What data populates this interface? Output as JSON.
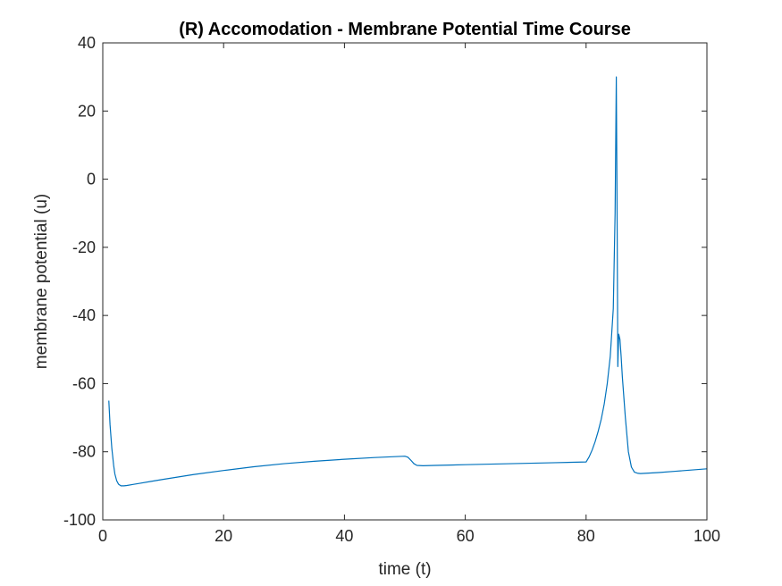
{
  "chart_data": {
    "type": "line",
    "title": "(R) Accomodation - Membrane Potential Time Course",
    "xlabel": "time (t)",
    "ylabel": "membrane potential (u)",
    "xlim": [
      0,
      100
    ],
    "ylim": [
      -100,
      40
    ],
    "xticks": [
      0,
      20,
      40,
      60,
      80,
      100
    ],
    "yticks": [
      -100,
      -80,
      -60,
      -40,
      -20,
      0,
      20,
      40
    ],
    "grid": false,
    "box": true,
    "series": [
      {
        "color": "#0072BD",
        "x": [
          1,
          1.2,
          1.5,
          1.8,
          2.0,
          2.3,
          2.6,
          3.0,
          3.5,
          4,
          5,
          6,
          8,
          10,
          15,
          20,
          25,
          30,
          35,
          40,
          45,
          50,
          50.5,
          51,
          51.5,
          52,
          53,
          55,
          60,
          65,
          70,
          75,
          80,
          80.5,
          81,
          81.5,
          82,
          82.5,
          83,
          83.5,
          84,
          84.5,
          84.8,
          85.0,
          85.1,
          85.2,
          85.25,
          85.4,
          85.6,
          85.8,
          86,
          86.5,
          87,
          87.5,
          88,
          88.5,
          89,
          90,
          92,
          95,
          100
        ],
        "y": [
          -65,
          -72,
          -79,
          -84,
          -86.5,
          -88.5,
          -89.5,
          -90,
          -90,
          -89.9,
          -89.6,
          -89.3,
          -88.7,
          -88.1,
          -86.7,
          -85.5,
          -84.4,
          -83.5,
          -82.8,
          -82.2,
          -81.7,
          -81.3,
          -81.6,
          -82.5,
          -83.5,
          -84,
          -84.1,
          -84,
          -83.8,
          -83.6,
          -83.4,
          -83.2,
          -83.0,
          -81.5,
          -79.5,
          -77,
          -74,
          -70.5,
          -66,
          -60,
          -52,
          -38,
          -10,
          30,
          0,
          -35,
          -55,
          -45.5,
          -47,
          -52,
          -58,
          -70,
          -80,
          -84.5,
          -86,
          -86.3,
          -86.4,
          -86.3,
          -86.1,
          -85.7,
          -85
        ]
      }
    ]
  }
}
